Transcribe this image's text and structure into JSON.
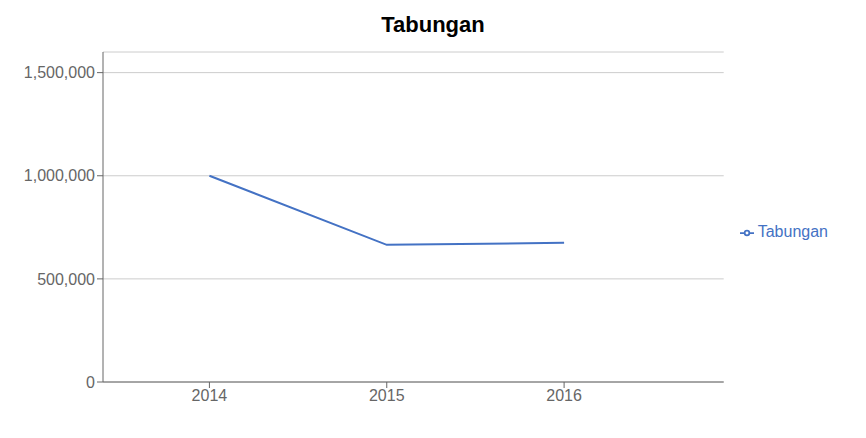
{
  "chart_data": {
    "type": "line",
    "title": "Tabungan",
    "x": [
      2014,
      2015,
      2016
    ],
    "series": [
      {
        "name": "Tabungan",
        "color": "#4472C4",
        "values": [
          1000000,
          665000,
          675000
        ]
      }
    ],
    "xlim": [
      2013.4,
      2016.9
    ],
    "xticks": [
      2014,
      2015,
      2016
    ],
    "ylim": [
      0,
      1600000
    ],
    "yticks": [
      0,
      {
        "value": 500000,
        "label": "500,000"
      },
      {
        "value": 1000000,
        "label": "1,000,000"
      },
      {
        "value": 1500000,
        "label": "1,500,000"
      }
    ],
    "grid": true,
    "legend": "right"
  }
}
